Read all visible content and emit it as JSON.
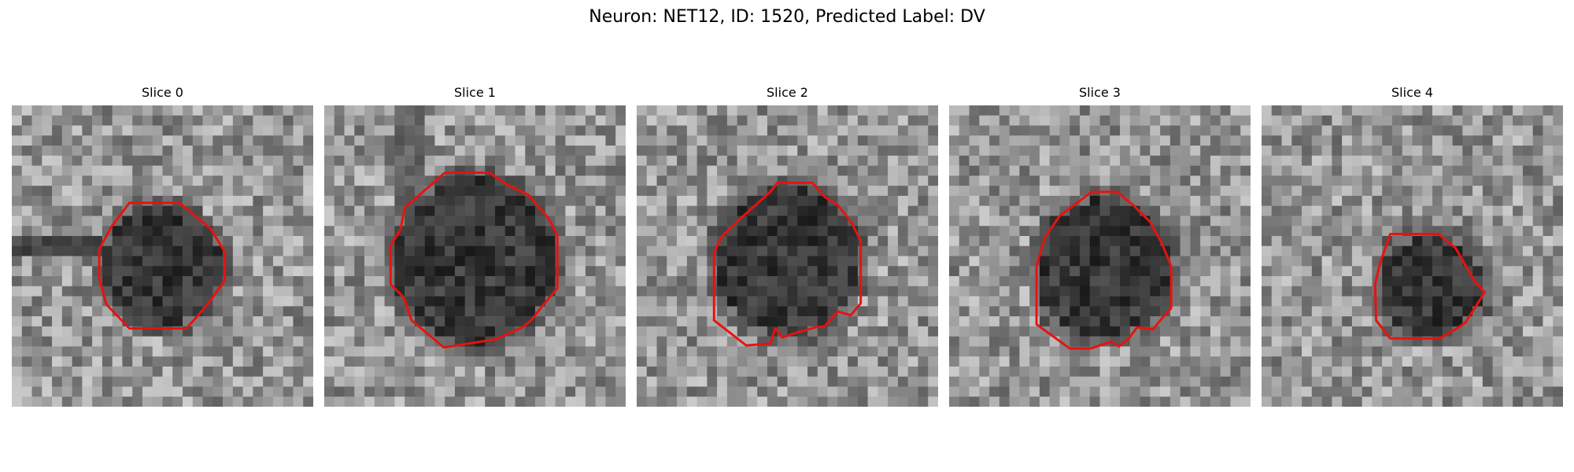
{
  "figure": {
    "title": "Neuron: NET12, ID: 1520, Predicted Label: DV"
  },
  "panels": [
    {
      "title": "Slice 0",
      "contour_color": "#e8120f"
    },
    {
      "title": "Slice 1",
      "contour_color": "#e8120f"
    },
    {
      "title": "Slice 2",
      "contour_color": "#e8120f"
    },
    {
      "title": "Slice 3",
      "contour_color": "#e8120f"
    },
    {
      "title": "Slice 4",
      "contour_color": "#e8120f"
    }
  ],
  "colors": {
    "contour": "#e8120f",
    "background": "#ffffff"
  }
}
